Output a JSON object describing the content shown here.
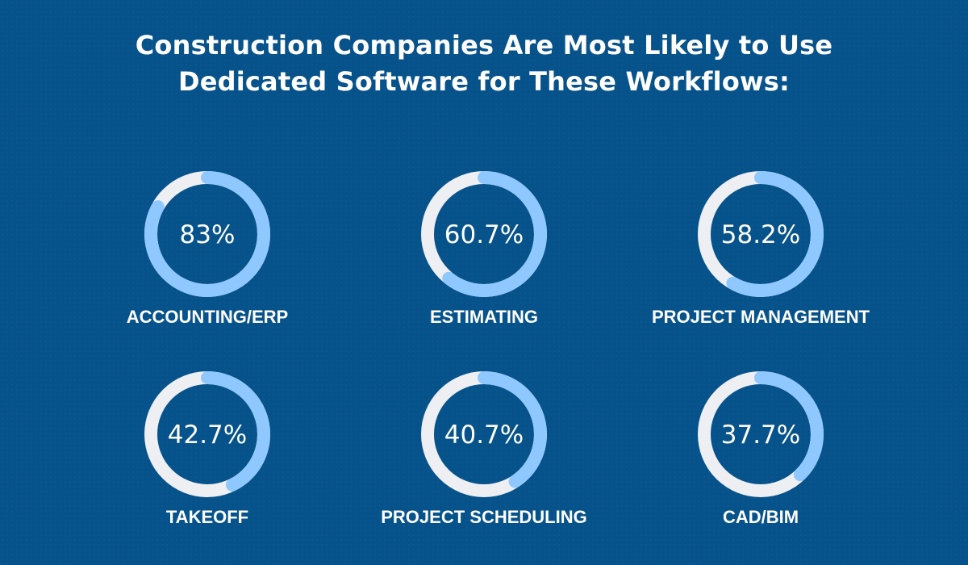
{
  "title_line1": "Construction Companies Are Most Likely to Use",
  "title_line2": "Dedicated Software for These Workflows:",
  "colors": {
    "background": "#06528a",
    "track": "#eeeff3",
    "value": "#8fc8ff",
    "text": "#ffffff"
  },
  "chart_data": {
    "type": "donut",
    "unit": "%",
    "categories": [
      "ACCOUNTING/ERP",
      "ESTIMATING",
      "PROJECT MANAGEMENT",
      "TAKEOFF",
      "PROJECT SCHEDULING",
      "CAD/BIM"
    ],
    "values": [
      83,
      60.7,
      58.2,
      42.7,
      40.7,
      37.7
    ],
    "value_labels": [
      "83%",
      "60.7%",
      "58.2%",
      "42.7%",
      "40.7%",
      "37.7%"
    ],
    "max": 100
  }
}
